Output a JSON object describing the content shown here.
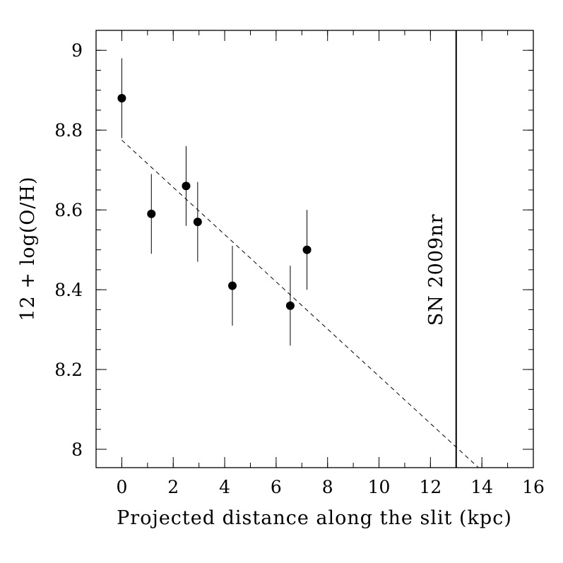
{
  "chart_data": {
    "type": "scatter",
    "title": "",
    "xlabel": "Projected distance along the slit (kpc)",
    "ylabel": "12 + log(O/H)",
    "xlim": [
      -1,
      16
    ],
    "ylim": [
      7.954,
      9.05
    ],
    "xticks": [
      {
        "value": 0,
        "label": "0"
      },
      {
        "value": 2,
        "label": "2"
      },
      {
        "value": 4,
        "label": "4"
      },
      {
        "value": 6,
        "label": "6"
      },
      {
        "value": 8,
        "label": "8"
      },
      {
        "value": 10,
        "label": "10"
      },
      {
        "value": 12,
        "label": "12"
      },
      {
        "value": 14,
        "label": "14"
      },
      {
        "value": 16,
        "label": "16"
      }
    ],
    "yticks": [
      {
        "value": 8.0,
        "label": "8"
      },
      {
        "value": 8.2,
        "label": "8.2"
      },
      {
        "value": 8.4,
        "label": "8.4"
      },
      {
        "value": 8.6,
        "label": "8.6"
      },
      {
        "value": 8.8,
        "label": "8.8"
      },
      {
        "value": 9.0,
        "label": "9"
      }
    ],
    "x_minor_step": 1,
    "y_minor_step": 0.05,
    "series": [
      {
        "marker": "filled-circle",
        "color": "#000000",
        "points": [
          {
            "x": 0.0,
            "y": 8.88,
            "err": 0.1
          },
          {
            "x": 1.15,
            "y": 8.59,
            "err": 0.1
          },
          {
            "x": 2.5,
            "y": 8.66,
            "err": 0.1
          },
          {
            "x": 2.95,
            "y": 8.57,
            "err": 0.1
          },
          {
            "x": 4.3,
            "y": 8.41,
            "err": 0.1
          },
          {
            "x": 6.55,
            "y": 8.36,
            "err": 0.1
          },
          {
            "x": 7.2,
            "y": 8.5,
            "err": 0.1
          }
        ]
      }
    ],
    "fit_line": {
      "style": "dashed",
      "x_start": 0.0,
      "y_start": 8.775,
      "slope": -0.0592
    },
    "vertical_marker": {
      "x": 13.0,
      "label": "SN 2009nr",
      "style": "solid"
    },
    "grid": false,
    "legend": "none"
  }
}
